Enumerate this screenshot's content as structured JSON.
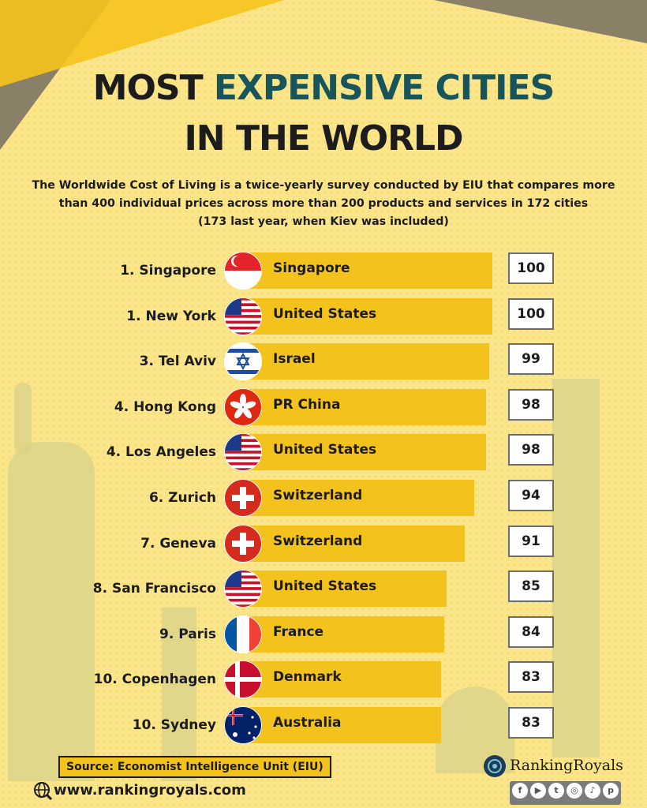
{
  "title": {
    "part1": "MOST ",
    "accent": "EXPENSIVE CITIES",
    "line2": "IN THE WORLD"
  },
  "description": {
    "line1": "The Worldwide Cost of Living is a twice-yearly survey conducted by EIU that compares more",
    "line2": "than 400 individual prices across more than 200 products and services in 172 cities",
    "line3": "(173 last year, when Kiev was included)"
  },
  "colors": {
    "background": "#fbe58a",
    "bar": "#f4c21d",
    "title_accent": "#17555a",
    "corner": "#8a7f67"
  },
  "chart_data": {
    "type": "bar",
    "orientation": "horizontal",
    "categories": [
      "1. Singapore",
      "1. New York",
      "3. Tel Aviv",
      "4. Hong Kong",
      "4. Los Angeles",
      "6. Zurich",
      "7. Geneva",
      "8. San Francisco",
      "9. Paris",
      "10. Copenhagen",
      "10. Sydney"
    ],
    "countries": [
      "Singapore",
      "United States",
      "Israel",
      "PR China",
      "United States",
      "Switzerland",
      "Switzerland",
      "United States",
      "France",
      "Denmark",
      "Australia"
    ],
    "flags": [
      "singapore-flag",
      "usa-flag",
      "israel-flag",
      "hong-kong-flag",
      "usa-flag",
      "switzerland-flag",
      "switzerland-flag",
      "usa-flag",
      "france-flag",
      "denmark-flag",
      "australia-flag"
    ],
    "values": [
      100,
      100,
      99,
      98,
      98,
      94,
      91,
      85,
      84,
      83,
      83
    ],
    "title": "MOST EXPENSIVE CITIES IN THE WORLD",
    "xlabel": "",
    "ylabel": ""
  },
  "footer": {
    "source": "Source: Economist Intelligence Unit (EIU)",
    "website": "www.rankingroyals.com",
    "brand": "RankingRoyals",
    "socials": [
      "facebook-icon",
      "youtube-icon",
      "twitter-icon",
      "instagram-icon",
      "tiktok-icon",
      "pinterest-icon"
    ]
  }
}
